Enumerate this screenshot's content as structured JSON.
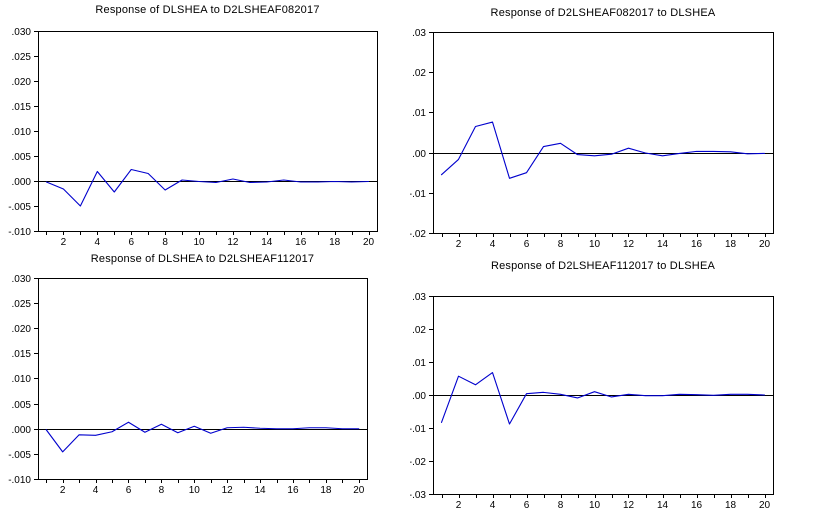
{
  "page": {
    "background": "#ffffff",
    "axis_color": "#000000",
    "text_color": "#000000"
  },
  "chart_data": [
    {
      "type": "line",
      "title": "Response of DLSHEA to D2LSHEAF082017",
      "xlabel": "",
      "ylabel": "",
      "grid": false,
      "legend": "none",
      "line_color": "#0000cd",
      "zero_line": true,
      "xlim": [
        0.5,
        20.5
      ],
      "ylim": [
        -0.01,
        0.03
      ],
      "x": [
        1,
        2,
        3,
        4,
        5,
        6,
        7,
        8,
        9,
        10,
        11,
        12,
        13,
        14,
        15,
        16,
        17,
        18,
        19,
        20
      ],
      "values": [
        -0.0002,
        -0.0016,
        -0.005,
        0.0019,
        -0.0022,
        0.0023,
        0.0015,
        -0.0018,
        0.0002,
        -0.0001,
        -0.0003,
        0.0004,
        -0.0003,
        -0.0002,
        0.0002,
        -0.0002,
        -0.0002,
        -0.0001,
        -0.0002,
        -0.0001
      ],
      "ytick_values": [
        0.03,
        0.025,
        0.02,
        0.015,
        0.01,
        0.005,
        0.0,
        -0.005,
        -0.01
      ],
      "ytick_labels": [
        ".030",
        ".025",
        ".020",
        ".015",
        ".010",
        ".005",
        ".000",
        "-.005",
        "-.010"
      ],
      "xtick_minor_values": [
        1,
        2,
        3,
        4,
        5,
        6,
        7,
        8,
        9,
        10,
        11,
        12,
        13,
        14,
        15,
        16,
        17,
        18,
        19,
        20
      ],
      "xtick_label_values": [
        2,
        4,
        6,
        8,
        10,
        12,
        14,
        16,
        18,
        20
      ],
      "xtick_labels": [
        "2",
        "4",
        "6",
        "8",
        "10",
        "12",
        "14",
        "16",
        "18",
        "20"
      ]
    },
    {
      "type": "line",
      "title": "Response of D2LSHEAF082017 to DLSHEA",
      "xlabel": "",
      "ylabel": "",
      "grid": false,
      "legend": "none",
      "line_color": "#0000cd",
      "zero_line": true,
      "xlim": [
        0.5,
        20.5
      ],
      "ylim": [
        -0.02,
        0.03
      ],
      "x": [
        1,
        2,
        3,
        4,
        5,
        6,
        7,
        8,
        9,
        10,
        11,
        12,
        13,
        14,
        15,
        16,
        17,
        18,
        19,
        20
      ],
      "values": [
        -0.0055,
        -0.0017,
        0.0065,
        0.0076,
        -0.0064,
        -0.005,
        0.0015,
        0.0023,
        -0.0005,
        -0.0008,
        -0.0004,
        0.0011,
        -0.0001,
        -0.0008,
        -0.0002,
        0.0003,
        0.0003,
        0.0002,
        -0.0003,
        -0.0002
      ],
      "ytick_values": [
        0.03,
        0.02,
        0.01,
        0.0,
        -0.01,
        -0.02
      ],
      "ytick_labels": [
        ".03",
        ".02",
        ".01",
        ".00",
        "-.01",
        "-.02"
      ],
      "xtick_minor_values": [
        1,
        2,
        3,
        4,
        5,
        6,
        7,
        8,
        9,
        10,
        11,
        12,
        13,
        14,
        15,
        16,
        17,
        18,
        19,
        20
      ],
      "xtick_label_values": [
        2,
        4,
        6,
        8,
        10,
        12,
        14,
        16,
        18,
        20
      ],
      "xtick_labels": [
        "2",
        "4",
        "6",
        "8",
        "10",
        "12",
        "14",
        "16",
        "18",
        "20"
      ]
    },
    {
      "type": "line",
      "title": "Response of DLSHEA to D2LSHEAF112017",
      "xlabel": "",
      "ylabel": "",
      "grid": false,
      "legend": "none",
      "line_color": "#0000cd",
      "zero_line": true,
      "xlim": [
        0.5,
        20.5
      ],
      "ylim": [
        -0.01,
        0.03
      ],
      "x": [
        1,
        2,
        3,
        4,
        5,
        6,
        7,
        8,
        9,
        10,
        11,
        12,
        13,
        14,
        15,
        16,
        17,
        18,
        19,
        20
      ],
      "values": [
        -0.0002,
        -0.0046,
        -0.0012,
        -0.0013,
        -0.0006,
        0.0013,
        -0.0007,
        0.0009,
        -0.0008,
        0.0005,
        -0.0009,
        0.0002,
        0.0003,
        0.0001,
        0.0,
        0.0,
        0.0002,
        0.0002,
        0.0,
        0.0
      ],
      "ytick_values": [
        0.03,
        0.025,
        0.02,
        0.015,
        0.01,
        0.005,
        0.0,
        -0.005,
        -0.01
      ],
      "ytick_labels": [
        ".030",
        ".025",
        ".020",
        ".015",
        ".010",
        ".005",
        ".000",
        "-.005",
        "-.010"
      ],
      "xtick_minor_values": [
        1,
        2,
        3,
        4,
        5,
        6,
        7,
        8,
        9,
        10,
        11,
        12,
        13,
        14,
        15,
        16,
        17,
        18,
        19,
        20
      ],
      "xtick_label_values": [
        2,
        4,
        6,
        8,
        10,
        12,
        14,
        16,
        18,
        20
      ],
      "xtick_labels": [
        "2",
        "4",
        "6",
        "8",
        "10",
        "12",
        "14",
        "16",
        "18",
        "20"
      ]
    },
    {
      "type": "line",
      "title": "Response of D2LSHEAF112017 to DLSHEA",
      "xlabel": "",
      "ylabel": "",
      "grid": false,
      "legend": "none",
      "line_color": "#0000cd",
      "zero_line": true,
      "xlim": [
        0.5,
        20.5
      ],
      "ylim": [
        -0.03,
        0.03
      ],
      "x": [
        1,
        2,
        3,
        4,
        5,
        6,
        7,
        8,
        9,
        10,
        11,
        12,
        13,
        14,
        15,
        16,
        17,
        18,
        19,
        20
      ],
      "values": [
        -0.0083,
        0.0057,
        0.0031,
        0.0068,
        -0.0088,
        0.0004,
        0.0008,
        0.0002,
        -0.0009,
        0.001,
        -0.0006,
        0.0002,
        -0.0002,
        -0.0002,
        0.0002,
        0.0001,
        -0.0001,
        0.0002,
        0.0002,
        0.0
      ],
      "ytick_values": [
        0.03,
        0.02,
        0.01,
        0.0,
        -0.01,
        -0.02,
        -0.03
      ],
      "ytick_labels": [
        ".03",
        ".02",
        ".01",
        ".00",
        "-.01",
        "-.02",
        "-.03"
      ],
      "xtick_minor_values": [
        1,
        2,
        3,
        4,
        5,
        6,
        7,
        8,
        9,
        10,
        11,
        12,
        13,
        14,
        15,
        16,
        17,
        18,
        19,
        20
      ],
      "xtick_label_values": [
        2,
        4,
        6,
        8,
        10,
        12,
        14,
        16,
        18,
        20
      ],
      "xtick_labels": [
        "2",
        "4",
        "6",
        "8",
        "10",
        "12",
        "14",
        "16",
        "18",
        "20"
      ]
    }
  ]
}
